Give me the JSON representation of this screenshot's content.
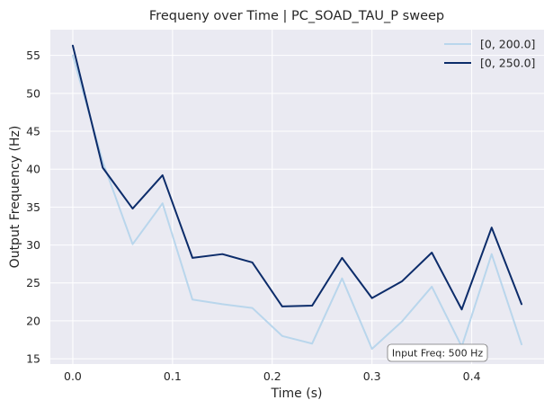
{
  "chart_data": {
    "type": "line",
    "title": "Frequeny over Time | PC_SOAD_TAU_P sweep",
    "xlabel": "Time (s)",
    "ylabel": "Output Frequency (Hz)",
    "xlim": [
      -0.0225,
      0.4725
    ],
    "ylim": [
      14.3,
      58.4
    ],
    "xticks": [
      0.0,
      0.1,
      0.2,
      0.3,
      0.4
    ],
    "xtick_labels": [
      "0.0",
      "0.1",
      "0.2",
      "0.3",
      "0.4"
    ],
    "yticks": [
      15,
      20,
      25,
      30,
      35,
      40,
      45,
      50,
      55
    ],
    "ytick_labels": [
      "15",
      "20",
      "25",
      "30",
      "35",
      "40",
      "45",
      "50",
      "55"
    ],
    "grid": true,
    "legend_position": "top-right",
    "x": [
      0.0,
      0.03,
      0.06,
      0.09,
      0.12,
      0.15,
      0.18,
      0.21,
      0.24,
      0.27,
      0.3,
      0.33,
      0.36,
      0.39,
      0.42,
      0.45
    ],
    "series": [
      {
        "name": "[0, 200.0]",
        "color": "#b9d6ec",
        "values": [
          55.0,
          41.0,
          30.1,
          35.5,
          22.8,
          22.2,
          21.7,
          18.0,
          17.0,
          25.6,
          16.3,
          19.9,
          24.5,
          16.6,
          28.8,
          16.9
        ]
      },
      {
        "name": "[0, 250.0]",
        "color": "#0c2c6a",
        "values": [
          56.3,
          40.2,
          34.8,
          39.2,
          28.3,
          28.8,
          27.7,
          21.9,
          22.0,
          28.3,
          23.0,
          25.2,
          29.0,
          21.5,
          32.3,
          22.2
        ]
      }
    ],
    "annotation": "Input Freq: 500 Hz"
  },
  "colors": {
    "plot_background": "#eaeaf2",
    "grid": "#ffffff",
    "text": "#262626"
  }
}
